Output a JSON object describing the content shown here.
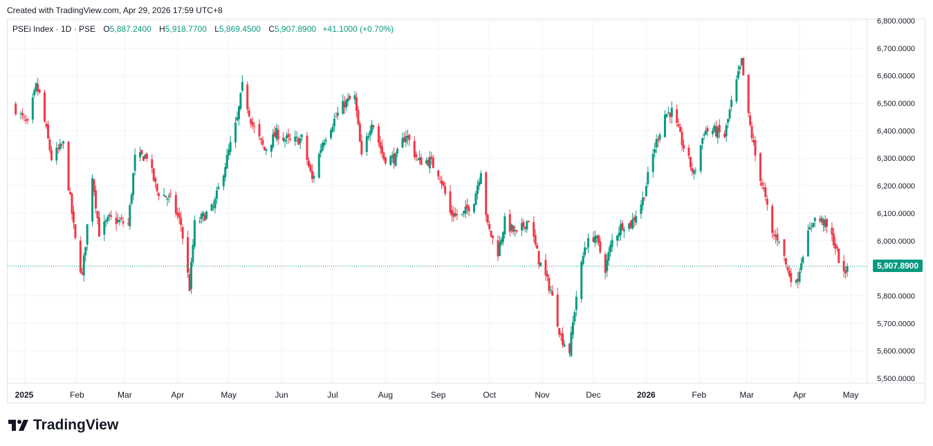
{
  "header": {
    "created_note": "Created with TradingView.com, Apr 29, 2026 17:59 UTC+8"
  },
  "legend": {
    "symbol": "PSEi Index · 1D · PSE",
    "open_label": "O",
    "open": "5,887.2400",
    "high_label": "H",
    "high": "5,918.7700",
    "low_label": "L",
    "low": "5,869.4500",
    "close_label": "C",
    "close": "5,907.8900",
    "change": "+41.1000 (+0.70%)"
  },
  "price_tag": "5,907.8900",
  "branding": {
    "logo_text": "TradingView",
    "logo_icon": "tradingview-logo-icon"
  },
  "colors": {
    "up": "#089981",
    "down": "#f23645",
    "grid": "#f0f3fa",
    "text": "#131722"
  },
  "chart_data": {
    "type": "candlestick",
    "title": "",
    "xlabel": "",
    "ylabel": "",
    "ylim": [
      5500,
      6800
    ],
    "y_ticks": [
      5500,
      5600,
      5700,
      5800,
      5900,
      6000,
      6100,
      6200,
      6300,
      6400,
      6500,
      6600,
      6700,
      6800
    ],
    "y_tick_labels": [
      "5,500.0000",
      "5,600.0000",
      "5,700.0000",
      "5,800.0000",
      "5,900.0000",
      "6,000.0000",
      "6,100.0000",
      "6,200.0000",
      "6,300.0000",
      "6,400.0000",
      "6,500.0000",
      "6,600.0000",
      "6,700.0000",
      "6,800.0000"
    ],
    "x_ticks": [
      {
        "label": "2025",
        "bold": true
      },
      {
        "label": "Feb"
      },
      {
        "label": "Mar"
      },
      {
        "label": "Apr"
      },
      {
        "label": "May"
      },
      {
        "label": "Jun"
      },
      {
        "label": "Jul"
      },
      {
        "label": "Aug"
      },
      {
        "label": "Sep"
      },
      {
        "label": "Oct"
      },
      {
        "label": "Nov"
      },
      {
        "label": "Dec"
      },
      {
        "label": "2026",
        "bold": true
      },
      {
        "label": "Feb"
      },
      {
        "label": "Mar"
      },
      {
        "label": "Apr"
      },
      {
        "label": "May"
      }
    ],
    "grid": true,
    "last_price": 5907.89,
    "anchors": [
      {
        "date": "2024-12-27",
        "close": 6480
      },
      {
        "date": "2025-01-03",
        "close": 6420
      },
      {
        "date": "2025-01-08",
        "close": 6560
      },
      {
        "date": "2025-01-10",
        "close": 6530
      },
      {
        "date": "2025-01-17",
        "close": 6300
      },
      {
        "date": "2025-01-24",
        "close": 6350
      },
      {
        "date": "2025-01-31",
        "close": 6000
      },
      {
        "date": "2025-02-04",
        "close": 5870
      },
      {
        "date": "2025-02-10",
        "close": 6240
      },
      {
        "date": "2025-02-14",
        "close": 6030
      },
      {
        "date": "2025-02-20",
        "close": 6080
      },
      {
        "date": "2025-03-03",
        "close": 6060
      },
      {
        "date": "2025-03-07",
        "close": 6300
      },
      {
        "date": "2025-03-14",
        "close": 6310
      },
      {
        "date": "2025-03-20",
        "close": 6180
      },
      {
        "date": "2025-03-28",
        "close": 6150
      },
      {
        "date": "2025-04-03",
        "close": 6060
      },
      {
        "date": "2025-04-08",
        "close": 5830
      },
      {
        "date": "2025-04-11",
        "close": 6060
      },
      {
        "date": "2025-04-22",
        "close": 6120
      },
      {
        "date": "2025-04-30",
        "close": 6300
      },
      {
        "date": "2025-05-06",
        "close": 6440
      },
      {
        "date": "2025-05-09",
        "close": 6560
      },
      {
        "date": "2025-05-15",
        "close": 6420
      },
      {
        "date": "2025-05-22",
        "close": 6330
      },
      {
        "date": "2025-05-29",
        "close": 6390
      },
      {
        "date": "2025-06-06",
        "close": 6360
      },
      {
        "date": "2025-06-13",
        "close": 6370
      },
      {
        "date": "2025-06-19",
        "close": 6220
      },
      {
        "date": "2025-06-25",
        "close": 6360
      },
      {
        "date": "2025-07-01",
        "close": 6430
      },
      {
        "date": "2025-07-08",
        "close": 6500
      },
      {
        "date": "2025-07-14",
        "close": 6520
      },
      {
        "date": "2025-07-18",
        "close": 6300
      },
      {
        "date": "2025-07-24",
        "close": 6440
      },
      {
        "date": "2025-07-31",
        "close": 6300
      },
      {
        "date": "2025-08-07",
        "close": 6300
      },
      {
        "date": "2025-08-13",
        "close": 6390
      },
      {
        "date": "2025-08-20",
        "close": 6290
      },
      {
        "date": "2025-08-27",
        "close": 6290
      },
      {
        "date": "2025-09-02",
        "close": 6240
      },
      {
        "date": "2025-09-08",
        "close": 6100
      },
      {
        "date": "2025-09-15",
        "close": 6090
      },
      {
        "date": "2025-09-22",
        "close": 6150
      },
      {
        "date": "2025-09-26",
        "close": 6260
      },
      {
        "date": "2025-09-30",
        "close": 6050
      },
      {
        "date": "2025-10-06",
        "close": 5960
      },
      {
        "date": "2025-10-10",
        "close": 6070
      },
      {
        "date": "2025-10-17",
        "close": 6020
      },
      {
        "date": "2025-10-24",
        "close": 6080
      },
      {
        "date": "2025-10-30",
        "close": 5930
      },
      {
        "date": "2025-11-06",
        "close": 5820
      },
      {
        "date": "2025-11-12",
        "close": 5650
      },
      {
        "date": "2025-11-17",
        "close": 5600
      },
      {
        "date": "2025-11-21",
        "close": 5800
      },
      {
        "date": "2025-11-26",
        "close": 5980
      },
      {
        "date": "2025-12-02",
        "close": 6020
      },
      {
        "date": "2025-12-08",
        "close": 5900
      },
      {
        "date": "2025-12-12",
        "close": 6000
      },
      {
        "date": "2025-12-18",
        "close": 6060
      },
      {
        "date": "2025-12-23",
        "close": 6060
      },
      {
        "date": "2025-12-30",
        "close": 6150
      },
      {
        "date": "2026-01-06",
        "close": 6340
      },
      {
        "date": "2026-01-12",
        "close": 6460
      },
      {
        "date": "2026-01-16",
        "close": 6470
      },
      {
        "date": "2026-01-23",
        "close": 6340
      },
      {
        "date": "2026-01-29",
        "close": 6240
      },
      {
        "date": "2026-02-04",
        "close": 6400
      },
      {
        "date": "2026-02-10",
        "close": 6400
      },
      {
        "date": "2026-02-16",
        "close": 6380
      },
      {
        "date": "2026-02-20",
        "close": 6500
      },
      {
        "date": "2026-02-26",
        "close": 6650
      },
      {
        "date": "2026-03-02",
        "close": 6450
      },
      {
        "date": "2026-03-06",
        "close": 6310
      },
      {
        "date": "2026-03-11",
        "close": 6180
      },
      {
        "date": "2026-03-16",
        "close": 6020
      },
      {
        "date": "2026-03-20",
        "close": 6010
      },
      {
        "date": "2026-03-25",
        "close": 5890
      },
      {
        "date": "2026-03-30",
        "close": 5840
      },
      {
        "date": "2026-04-03",
        "close": 5960
      },
      {
        "date": "2026-04-09",
        "close": 6080
      },
      {
        "date": "2026-04-15",
        "close": 6070
      },
      {
        "date": "2026-04-21",
        "close": 6000
      },
      {
        "date": "2026-04-27",
        "close": 5870
      },
      {
        "date": "2026-04-29",
        "close": 5907.89
      }
    ]
  }
}
